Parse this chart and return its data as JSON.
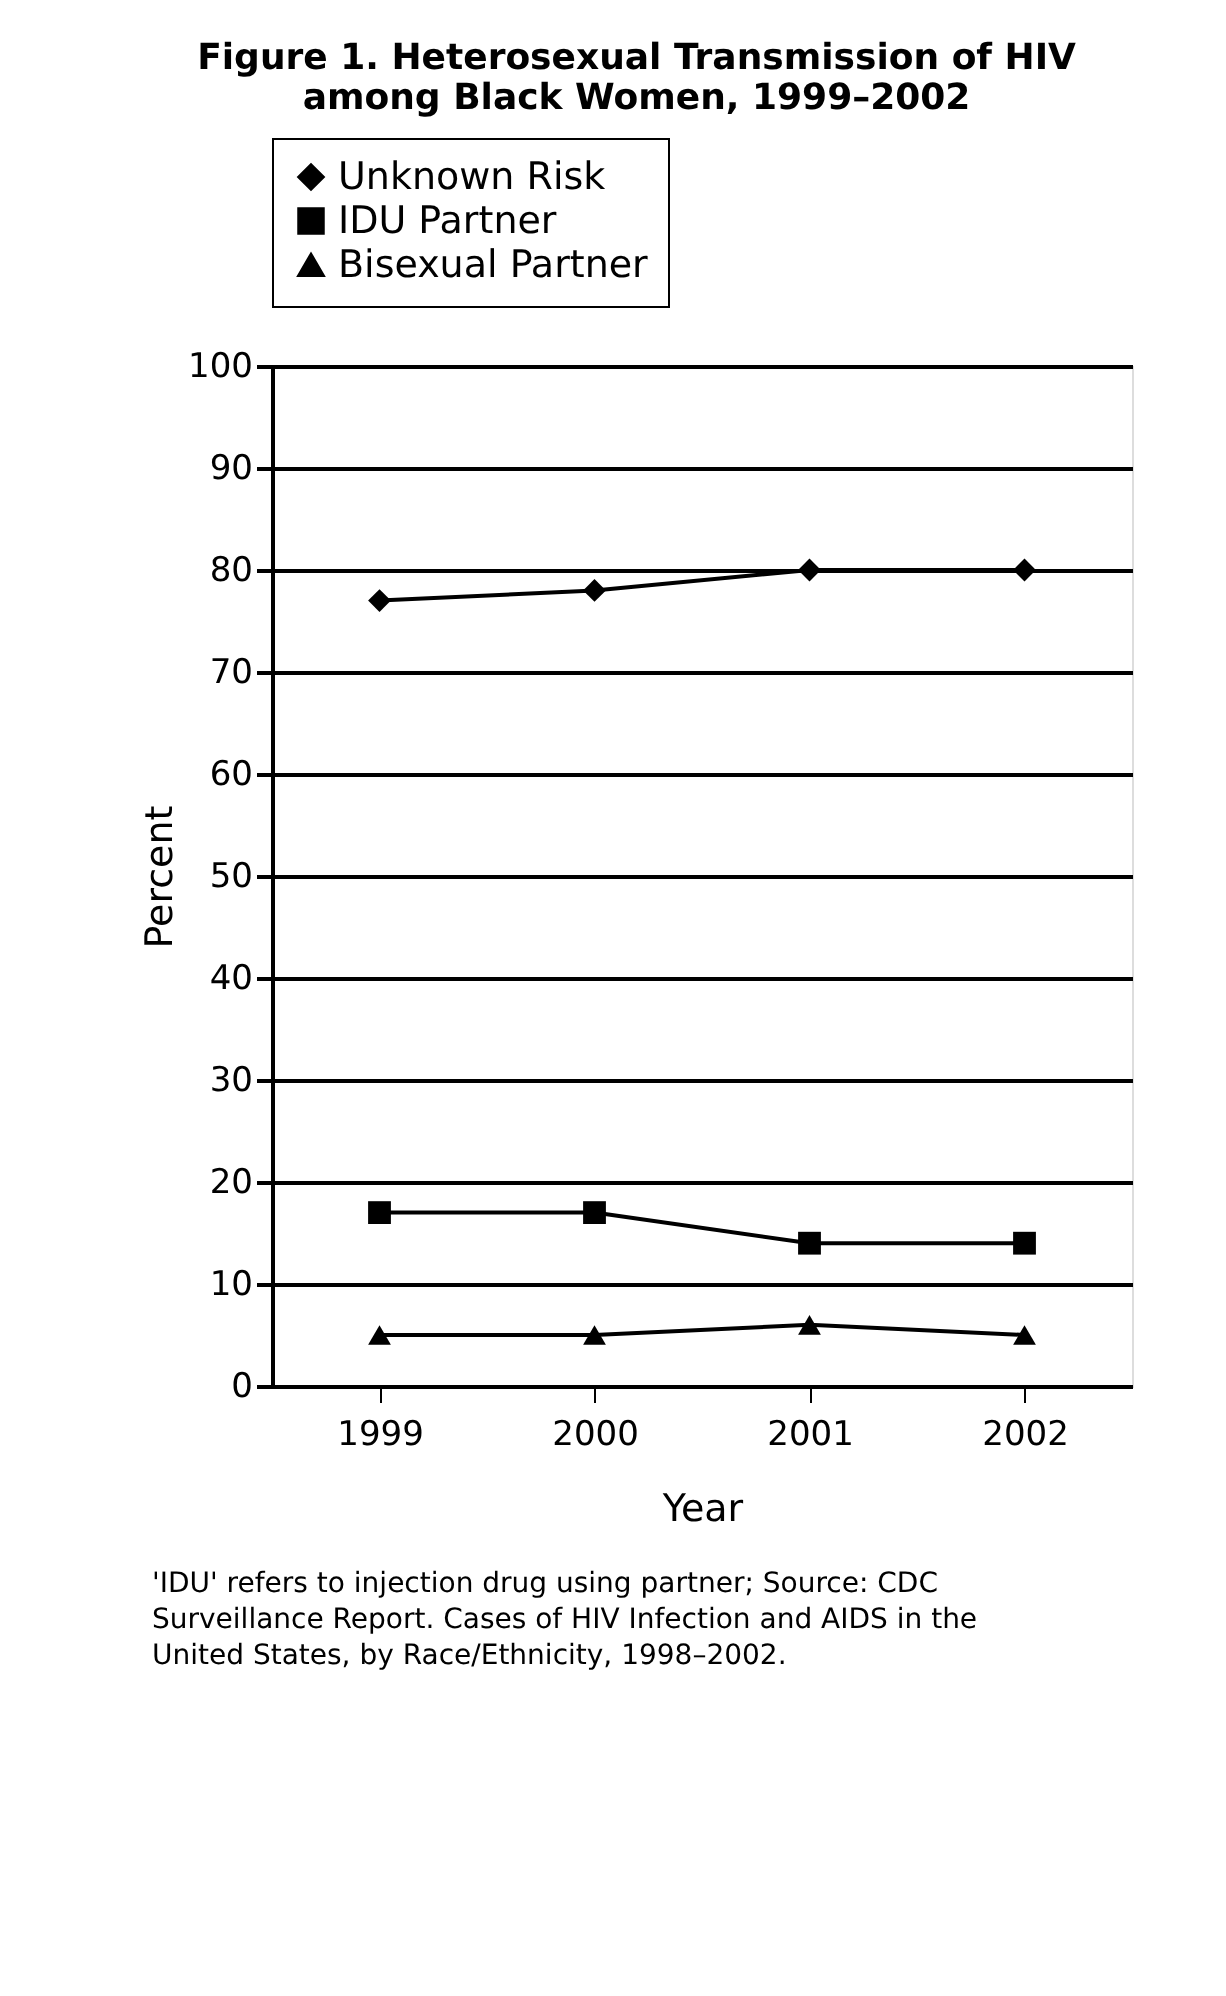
{
  "chart_data": {
    "type": "line",
    "title": "Figure 1. Heterosexual Transmission of HIV among Black Women, 1999–2002",
    "xlabel": "Year",
    "ylabel": "Percent",
    "categories": [
      "1999",
      "2000",
      "2001",
      "2002"
    ],
    "series": [
      {
        "name": "Unknown Risk",
        "color": "#000000",
        "marker": "diamond",
        "values": [
          77,
          78,
          80,
          80
        ]
      },
      {
        "name": "IDU Partner",
        "color": "#000000",
        "marker": "square",
        "values": [
          17,
          17,
          14,
          14
        ]
      },
      {
        "name": "Bisexual Partner",
        "color": "#000000",
        "marker": "triangle",
        "values": [
          5,
          5,
          6,
          5
        ]
      }
    ],
    "ylim": [
      0,
      100
    ],
    "yticks": [
      0,
      10,
      20,
      30,
      40,
      50,
      60,
      70,
      80,
      90,
      100
    ],
    "grid": "y",
    "legend": "top",
    "line_style": "solid",
    "annotations": [
      "'IDU' refers to injection drug using partner; Source: CDC Surveillance Report. Cases of HIV Infection and AIDS in the United States, by Race/Ethnicity, 1998–2002."
    ]
  }
}
